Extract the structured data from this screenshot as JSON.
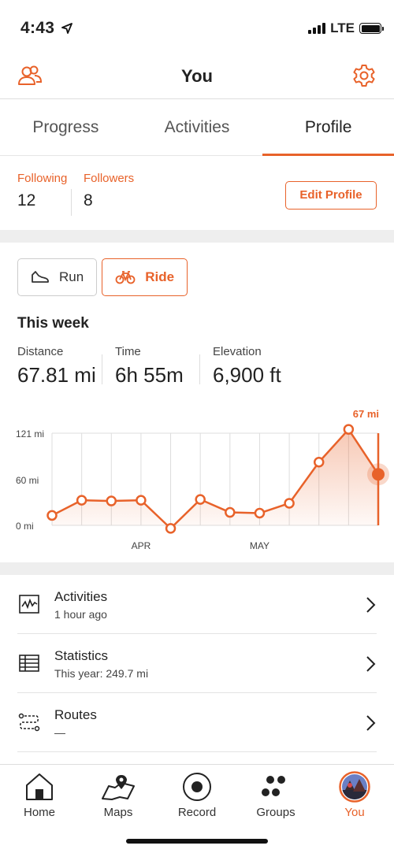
{
  "status": {
    "time": "4:43",
    "network": "LTE"
  },
  "header": {
    "title": "You"
  },
  "tabs": [
    {
      "label": "Progress"
    },
    {
      "label": "Activities"
    },
    {
      "label": "Profile"
    }
  ],
  "follow": {
    "following_label": "Following",
    "following_count": "12",
    "followers_label": "Followers",
    "followers_count": "8",
    "edit_label": "Edit Profile"
  },
  "sport": {
    "run_label": "Run",
    "ride_label": "Ride"
  },
  "week": {
    "title": "This week",
    "distance_label": "Distance",
    "distance_value": "67.81 mi",
    "time_label": "Time",
    "time_value": "6h 55m",
    "elevation_label": "Elevation",
    "elevation_value": "6,900 ft"
  },
  "chart_data": {
    "type": "line",
    "title": "",
    "xlabel": "",
    "ylabel": "",
    "y_tick_labels": [
      "121 mi",
      "60 mi",
      "0 mi"
    ],
    "y_ticks": [
      121,
      60,
      0
    ],
    "x_tick_labels": [
      {
        "label": "APR",
        "index": 3
      },
      {
        "label": "MAY",
        "index": 7
      }
    ],
    "ylim": [
      0,
      121
    ],
    "values": [
      13,
      33,
      32,
      33,
      -4,
      34,
      17,
      16,
      29,
      83,
      126,
      67
    ],
    "highlight_index": 11,
    "highlight_label": "67 mi",
    "colors": {
      "line": "#e8622a",
      "grid": "#dddddd"
    }
  },
  "menu": [
    {
      "title": "Activities",
      "subtitle": "1 hour ago",
      "icon": "activity-graph-icon"
    },
    {
      "title": "Statistics",
      "subtitle": "This year: 249.7 mi",
      "icon": "table-icon"
    },
    {
      "title": "Routes",
      "subtitle": "—",
      "icon": "route-icon"
    }
  ],
  "tabbar": [
    {
      "label": "Home",
      "icon": "home-icon"
    },
    {
      "label": "Maps",
      "icon": "map-icon"
    },
    {
      "label": "Record",
      "icon": "record-icon"
    },
    {
      "label": "Groups",
      "icon": "groups-icon"
    },
    {
      "label": "You",
      "icon": "avatar"
    }
  ],
  "accent": "#e8622a"
}
